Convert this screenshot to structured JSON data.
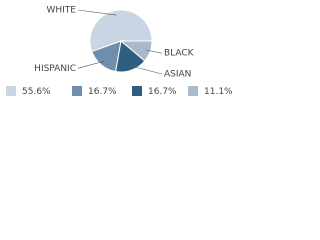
{
  "chart_data": {
    "type": "pie",
    "categories": [
      "WHITE",
      "HISPANIC",
      "ASIAN",
      "BLACK"
    ],
    "values": [
      55.6,
      16.7,
      16.7,
      11.1
    ],
    "value_labels": [
      "55.6%",
      "16.7%",
      "16.7%",
      "11.1%"
    ],
    "colors": [
      "#c9d5e2",
      "#6f8eae",
      "#2f5f80",
      "#a9bacb"
    ]
  }
}
